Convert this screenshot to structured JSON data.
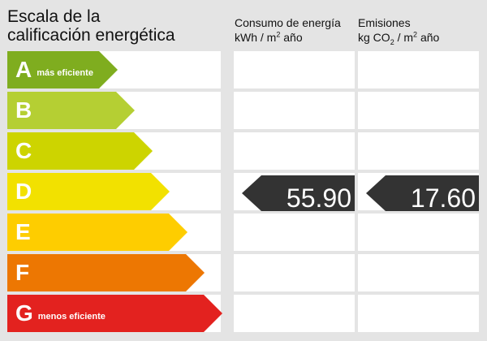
{
  "title_line1": "Escala de la",
  "title_line2": "calificación energética",
  "col_consumo": {
    "line1": "Consumo de energía",
    "line2_pre": "kWh / m",
    "line2_sup": "2",
    "line2_post": " año"
  },
  "col_emisiones": {
    "line1": "Emisiones",
    "line2_pre": "kg CO",
    "line2_sub": "2",
    "line2_mid": " / m",
    "line2_sup": "2",
    "line2_post": " año"
  },
  "ratings": [
    {
      "letter": "A",
      "desc": "más eficiente",
      "color": "#7fad1f"
    },
    {
      "letter": "B",
      "desc": "",
      "color": "#b5cf33"
    },
    {
      "letter": "C",
      "desc": "",
      "color": "#cdd400"
    },
    {
      "letter": "D",
      "desc": "",
      "color": "#f2e100"
    },
    {
      "letter": "E",
      "desc": "",
      "color": "#fecd00"
    },
    {
      "letter": "F",
      "desc": "",
      "color": "#ed7702"
    },
    {
      "letter": "G",
      "desc": "menos eficiente",
      "color": "#e3221f"
    }
  ],
  "current_rating": "D",
  "consumo_value": "55.90",
  "emisiones_value": "17.60",
  "indicator_color": "#333333"
}
